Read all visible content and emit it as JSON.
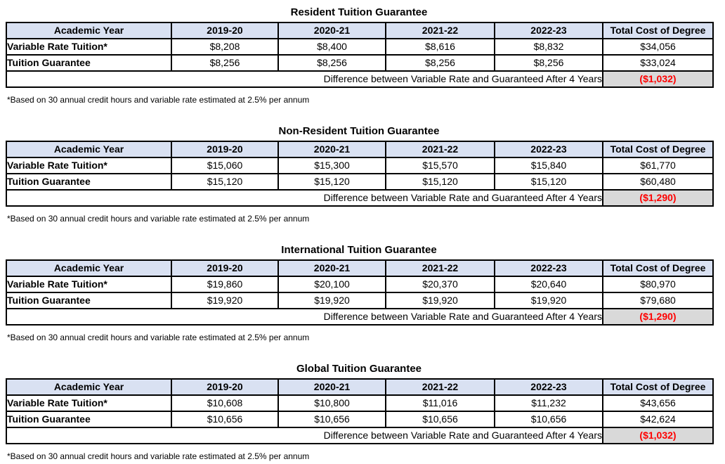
{
  "chart_data": [
    {
      "type": "table",
      "title": "Resident Tuition Guarantee",
      "columns": [
        "Academic Year",
        "2019-20",
        "2020-21",
        "2021-22",
        "2022-23",
        "Total Cost of Degree"
      ],
      "rows": [
        {
          "label": "Variable Rate Tuition*",
          "values": [
            "$8,208",
            "$8,400",
            "$8,616",
            "$8,832",
            "$34,056"
          ]
        },
        {
          "label": "Tuition Guarantee",
          "values": [
            "$8,256",
            "$8,256",
            "$8,256",
            "$8,256",
            "$33,024"
          ]
        }
      ],
      "difference_label": "Difference between Variable Rate and Guaranteed After 4 Years",
      "difference_value": "($1,032)",
      "footnote": "*Based on 30 annual credit hours and variable rate estimated at 2.5% per annum"
    },
    {
      "type": "table",
      "title": "Non-Resident Tuition Guarantee",
      "columns": [
        "Academic Year",
        "2019-20",
        "2020-21",
        "2021-22",
        "2022-23",
        "Total Cost of Degree"
      ],
      "rows": [
        {
          "label": "Variable Rate Tuition*",
          "values": [
            "$15,060",
            "$15,300",
            "$15,570",
            "$15,840",
            "$61,770"
          ]
        },
        {
          "label": "Tuition Guarantee",
          "values": [
            "$15,120",
            "$15,120",
            "$15,120",
            "$15,120",
            "$60,480"
          ]
        }
      ],
      "difference_label": "Difference between Variable Rate and Guaranteed After 4 Years",
      "difference_value": "($1,290)",
      "footnote": "*Based on 30 annual credit hours and variable rate estimated at 2.5% per annum"
    },
    {
      "type": "table",
      "title": "International Tuition Guarantee",
      "columns": [
        "Academic Year",
        "2019-20",
        "2020-21",
        "2021-22",
        "2022-23",
        "Total Cost of Degree"
      ],
      "rows": [
        {
          "label": "Variable Rate Tuition*",
          "values": [
            "$19,860",
            "$20,100",
            "$20,370",
            "$20,640",
            "$80,970"
          ]
        },
        {
          "label": "Tuition Guarantee",
          "values": [
            "$19,920",
            "$19,920",
            "$19,920",
            "$19,920",
            "$79,680"
          ]
        }
      ],
      "difference_label": "Difference between Variable Rate and Guaranteed After 4 Years",
      "difference_value": "($1,290)",
      "footnote": "*Based on 30 annual credit hours and variable rate estimated at 2.5% per annum"
    },
    {
      "type": "table",
      "title": "Global Tuition Guarantee",
      "columns": [
        "Academic Year",
        "2019-20",
        "2020-21",
        "2021-22",
        "2022-23",
        "Total Cost of Degree"
      ],
      "rows": [
        {
          "label": "Variable Rate Tuition*",
          "values": [
            "$10,608",
            "$10,800",
            "$11,016",
            "$11,232",
            "$43,656"
          ]
        },
        {
          "label": "Tuition Guarantee",
          "values": [
            "$10,656",
            "$10,656",
            "$10,656",
            "$10,656",
            "$42,624"
          ]
        }
      ],
      "difference_label": "Difference between Variable Rate and Guaranteed After 4 Years",
      "difference_value": "($1,032)",
      "footnote": "*Based on 30 annual credit hours and variable rate estimated at 2.5% per annum"
    }
  ],
  "colors": {
    "header_bg": "#D9E1F2",
    "difference_bg": "#D9D9D9",
    "difference_text": "#FF0000",
    "border": "#000000"
  }
}
